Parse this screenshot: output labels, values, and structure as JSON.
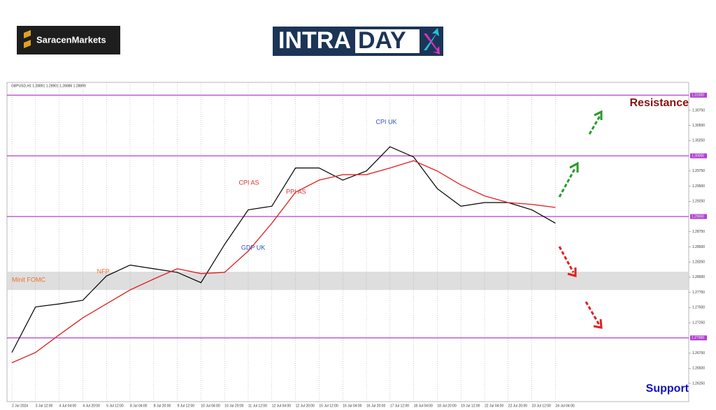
{
  "header": {
    "brand": "SaracenMarkets",
    "logo_left": "INTRA",
    "logo_right": "DAY"
  },
  "chart_data": {
    "type": "line",
    "symbol_info": "GBPUSD,H1  1.28891 1.28901 1.28886 1.28899",
    "categories": [
      "2 Jul 2024",
      "3 Jul 12:00",
      "4 Jul 04:00",
      "4 Jul 20:00",
      "5 Jul 12:00",
      "8 Jul 04:00",
      "8 Jul 20:00",
      "9 Jul 12:00",
      "10 Jul 04:00",
      "10 Jul 20:00",
      "11 Jul 12:00",
      "12 Jul 04:00",
      "12 Jul 20:00",
      "15 Jul 12:00",
      "16 Jul 04:00",
      "16 Jul 20:00",
      "17 Jul 12:00",
      "18 Jul 04:00",
      "18 Jul 20:00",
      "19 Jul 12:00",
      "22 Jul 04:00",
      "22 Jul 20:00",
      "23 Jul 12:00",
      "24 Jul 04:00"
    ],
    "series": [
      {
        "name": "GBPUSD",
        "color": "#000000",
        "values": [
          1.2676,
          1.2751,
          1.2756,
          1.2762,
          1.2802,
          1.282,
          1.2814,
          1.2808,
          1.2791,
          1.2854,
          1.2911,
          1.2917,
          1.298,
          1.298,
          1.296,
          1.2975,
          1.3015,
          1.2998,
          1.2946,
          1.2917,
          1.2923,
          1.2923,
          1.2911,
          1.2889
        ]
      },
      {
        "name": "MA",
        "color": "#e02020",
        "values": [
          1.2659,
          1.2676,
          1.2705,
          1.2733,
          1.2756,
          1.2779,
          1.2797,
          1.2814,
          1.2806,
          1.2808,
          1.2843,
          1.2889,
          1.294,
          1.296,
          1.2969,
          1.2969,
          1.298,
          1.2992,
          1.2975,
          1.2952,
          1.2934,
          1.2923,
          1.292,
          1.2915
        ]
      }
    ],
    "ylim": [
      1.2595,
      1.3121
    ],
    "yticks": [
      {
        "value": 1.2625,
        "label": "1.26250"
      },
      {
        "value": 1.265,
        "label": "1.26500"
      },
      {
        "value": 1.2675,
        "label": "1.26750"
      },
      {
        "value": 1.2725,
        "label": "1.27250"
      },
      {
        "value": 1.275,
        "label": "1.27500"
      },
      {
        "value": 1.2775,
        "label": "1.27750"
      },
      {
        "value": 1.28,
        "label": "1.28000"
      },
      {
        "value": 1.2825,
        "label": "1.28250"
      },
      {
        "value": 1.285,
        "label": "1.28500"
      },
      {
        "value": 1.2875,
        "label": "1.28750"
      },
      {
        "value": 1.2925,
        "label": "1.29250"
      },
      {
        "value": 1.295,
        "label": "1.29500"
      },
      {
        "value": 1.2975,
        "label": "1.29750"
      },
      {
        "value": 1.3025,
        "label": "1.30250"
      },
      {
        "value": 1.305,
        "label": "1.30500"
      },
      {
        "value": 1.3075,
        "label": "1.30750"
      }
    ],
    "levels": [
      {
        "value": 1.31,
        "label": "1.31000"
      },
      {
        "value": 1.3,
        "label": "1.30000"
      },
      {
        "value": 1.29,
        "label": "1.29000"
      },
      {
        "value": 1.27,
        "label": "1.27000"
      }
    ],
    "level_color": "#b040d0",
    "zone": [
      1.2779,
      1.2809
    ],
    "annotations": [
      {
        "text": "Minit FOMC",
        "color": "#f07030",
        "at": [
          0,
          1.2795
        ]
      },
      {
        "text": "NFP",
        "color": "#f07030",
        "at": [
          3.6,
          1.2809
        ]
      },
      {
        "text": "CPI AS",
        "color": "#e03030",
        "at": [
          9.6,
          1.2955
        ]
      },
      {
        "text": "PPI AS",
        "color": "#e03030",
        "at": [
          11.6,
          1.294
        ]
      },
      {
        "text": "GDP UK",
        "color": "#3050c0",
        "at": [
          9.7,
          1.2848
        ]
      },
      {
        "text": "CPI UK",
        "color": "#3050c0",
        "at": [
          15.4,
          1.3055
        ]
      }
    ],
    "resistance_label": "Resistance",
    "support_label": "Support"
  }
}
